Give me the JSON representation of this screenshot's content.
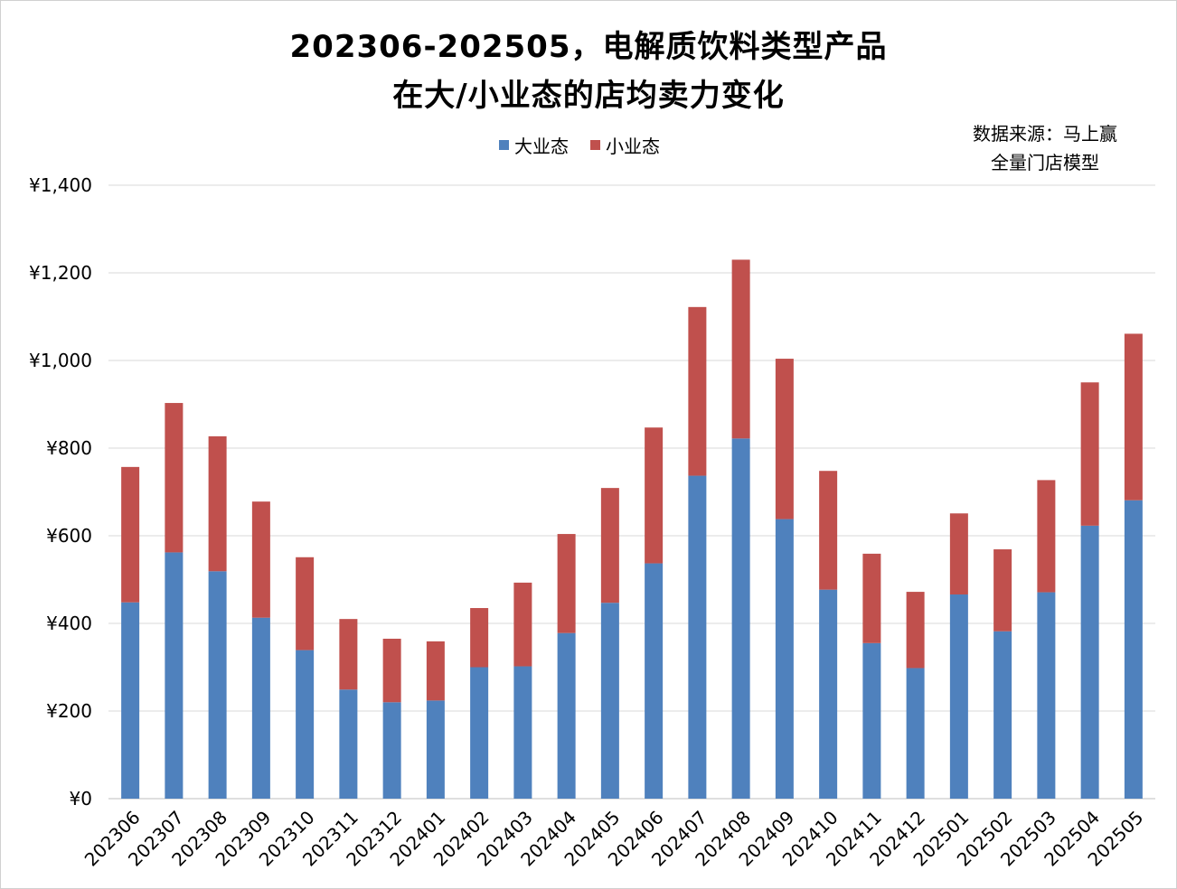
{
  "title_line1": "202306-202505，电解质饮料类型产品",
  "title_line2": "在大/小业态的店均卖力变化",
  "source_line1": "数据来源：马上赢",
  "source_line2": "全量门店模型",
  "colors": {
    "large": "#4f81bd",
    "small": "#c0504d",
    "grid": "#d9d9d9"
  },
  "chart_data": {
    "type": "bar",
    "stacked": true,
    "categories": [
      "202306",
      "202307",
      "202308",
      "202309",
      "202310",
      "202311",
      "202312",
      "202401",
      "202402",
      "202403",
      "202404",
      "202405",
      "202406",
      "202407",
      "202408",
      "202409",
      "202410",
      "202411",
      "202412",
      "202501",
      "202502",
      "202503",
      "202504",
      "202505"
    ],
    "series": [
      {
        "name": "大业态",
        "values": [
          448,
          562,
          519,
          413,
          339,
          249,
          220,
          224,
          300,
          302,
          378,
          447,
          537,
          737,
          822,
          638,
          477,
          355,
          298,
          466,
          382,
          471,
          623,
          681
        ]
      },
      {
        "name": "小业态",
        "values": [
          309,
          341,
          308,
          265,
          212,
          161,
          145,
          135,
          135,
          191,
          226,
          262,
          310,
          385,
          408,
          366,
          271,
          204,
          174,
          185,
          187,
          256,
          327,
          380
        ]
      }
    ],
    "yticks": [
      "¥0",
      "¥200",
      "¥400",
      "¥600",
      "¥800",
      "¥1,000",
      "¥1,200",
      "¥1,400"
    ],
    "ylim": [
      0,
      1400
    ],
    "grid": true,
    "legend": "top-center"
  }
}
